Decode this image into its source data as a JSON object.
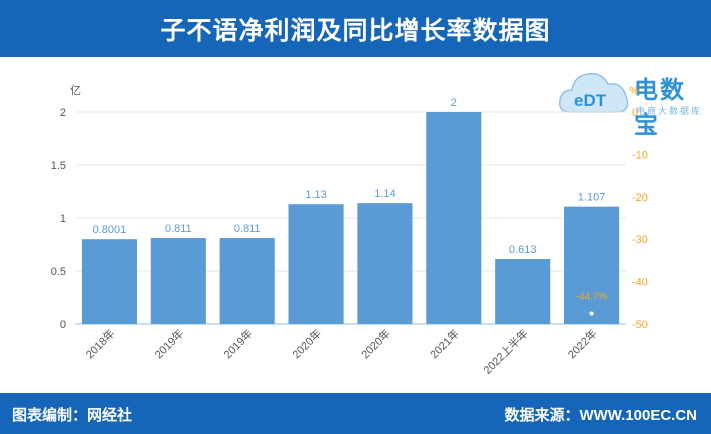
{
  "header": {
    "title": "子不语净利润及同比增长率数据图"
  },
  "footer": {
    "left": "图表编制：网经社",
    "right": "数据来源：WWW.100EC.CN"
  },
  "logo": {
    "brand": "电数宝",
    "sub": "电商大数据库",
    "mark": "eDT"
  },
  "colors": {
    "bar": "#5b9bd5",
    "bar_label": "#5b9bd5",
    "right_axis": "#f5a623",
    "header": "#1565b8"
  },
  "chart_data": {
    "type": "bar",
    "categories": [
      "2018年",
      "2019年",
      "2019年",
      "2020年",
      "2020年",
      "2021年",
      "2022上半年",
      "2022年"
    ],
    "series": [
      {
        "values": [
          0.8001,
          0.811,
          0.811,
          1.13,
          1.14,
          2,
          0.613,
          1.107
        ],
        "labels": [
          "0.8001",
          "0.811",
          "0.811",
          "1.13",
          "1.14",
          "2",
          "0.613",
          "1.107"
        ]
      }
    ],
    "left_axis": {
      "unit": "亿",
      "ylim": [
        0,
        2
      ],
      "ticks": [
        "0",
        "0.5",
        "1",
        "1.5",
        "2"
      ],
      "tick_values": [
        0,
        0.5,
        1,
        1.5,
        2
      ]
    },
    "right_axis": {
      "unit": "%",
      "ylim": [
        -50,
        0
      ],
      "ticks": [
        "0",
        "-10",
        "-20",
        "-30",
        "-40",
        "-50"
      ],
      "tick_values": [
        0,
        -10,
        -20,
        -30,
        -40,
        -50
      ]
    },
    "growth_points": [
      {
        "category_index": 7,
        "value": -44.7,
        "label": "-44.7%"
      }
    ],
    "grid": true
  }
}
